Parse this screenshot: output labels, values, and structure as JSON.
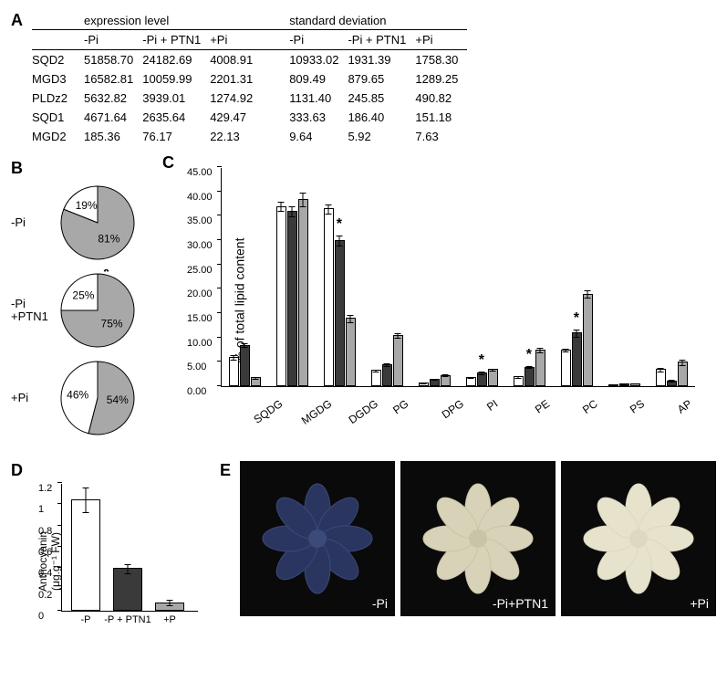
{
  "panelA": {
    "group_headers": [
      "expression level",
      "standard deviation"
    ],
    "col_headers": [
      "-Pi",
      "-Pi + PTN1",
      "+Pi"
    ],
    "rows": [
      {
        "label": "SQD2",
        "expr": [
          "51858.70",
          "24182.69",
          "4008.91"
        ],
        "sd": [
          "10933.02",
          "1931.39",
          "1758.30"
        ]
      },
      {
        "label": "MGD3",
        "expr": [
          "16582.81",
          "10059.99",
          "2201.31"
        ],
        "sd": [
          "809.49",
          "879.65",
          "1289.25"
        ]
      },
      {
        "label": "PLDz2",
        "expr": [
          "5632.82",
          "3939.01",
          "1274.92"
        ],
        "sd": [
          "1131.40",
          "245.85",
          "490.82"
        ]
      },
      {
        "label": "SQD1",
        "expr": [
          "4671.64",
          "2635.64",
          "429.47"
        ],
        "sd": [
          "333.63",
          "186.40",
          "151.18"
        ]
      },
      {
        "label": "MGD2",
        "expr": [
          "185.36",
          "76.17",
          "22.13"
        ],
        "sd": [
          "9.64",
          "5.92",
          "7.63"
        ]
      }
    ]
  },
  "panelB": {
    "pies": [
      {
        "condition": "-Pi",
        "white_pct": 19,
        "gray_pct": 81,
        "white_label": "19%",
        "gray_label": "81%",
        "star": false
      },
      {
        "condition": "-Pi\n+PTN1",
        "white_pct": 25,
        "gray_pct": 75,
        "white_label": "25%",
        "gray_label": "75%",
        "star": true
      },
      {
        "condition": "+Pi",
        "white_pct": 46,
        "gray_pct": 54,
        "white_label": "46%",
        "gray_label": "54%",
        "star": false
      }
    ],
    "colors": {
      "white": "#ffffff",
      "gray": "#a8a8a8",
      "stroke": "#000000"
    }
  },
  "panelC": {
    "type": "bar",
    "ylabel": "% of total lipid content",
    "ylim": [
      0,
      45
    ],
    "ytick_step": 5,
    "yticks": [
      "0.00",
      "5.00",
      "10.00",
      "15.00",
      "20.00",
      "25.00",
      "30.00",
      "35.00",
      "40.00",
      "45.00"
    ],
    "categories": [
      "SQDG",
      "MGDG",
      "DGDG",
      "PG",
      "DPG",
      "PI",
      "PE",
      "PC",
      "PS",
      "AP"
    ],
    "series": [
      {
        "name": "-Pi",
        "color": "#ffffff",
        "values": [
          6.0,
          37.0,
          36.5,
          3.3,
          0.8,
          1.8,
          2.0,
          7.5,
          0.3,
          3.5
        ],
        "err": [
          0.5,
          1.0,
          1.0,
          0.3,
          0.2,
          0.2,
          0.3,
          0.4,
          0.1,
          0.5
        ]
      },
      {
        "name": "-Pi+PTN1",
        "color": "#3a3a3a",
        "values": [
          8.5,
          36.0,
          30.0,
          4.5,
          1.5,
          2.8,
          4.0,
          11.0,
          0.5,
          1.2
        ],
        "err": [
          0.5,
          1.2,
          1.2,
          0.3,
          0.2,
          0.3,
          0.3,
          0.8,
          0.1,
          0.3
        ]
      },
      {
        "name": "+Pi",
        "color": "#a8a8a8",
        "values": [
          1.8,
          38.5,
          14.0,
          10.5,
          2.3,
          3.5,
          7.5,
          19.0,
          0.6,
          5.0
        ],
        "err": [
          0.3,
          1.5,
          0.8,
          0.5,
          0.3,
          0.3,
          0.5,
          0.8,
          0.1,
          0.6
        ]
      }
    ],
    "stars": [
      {
        "cat": "DGDG",
        "series": 1
      },
      {
        "cat": "PI",
        "series": 1
      },
      {
        "cat": "PE",
        "series": 1
      },
      {
        "cat": "PC",
        "series": 1
      }
    ]
  },
  "panelD": {
    "type": "bar",
    "ylabel_line1": "Anthocyanin",
    "ylabel_line2": "(μg.g⁻¹ FW)",
    "ylim": [
      0,
      1.2
    ],
    "ytick_step": 0.2,
    "yticks": [
      "0",
      "0.2",
      "0.4",
      "0.6",
      "0.8",
      "1",
      "1.2"
    ],
    "categories": [
      "-P",
      "-P + PTN1",
      "+P"
    ],
    "values": [
      1.05,
      0.4,
      0.08
    ],
    "err": [
      0.12,
      0.05,
      0.03
    ],
    "colors": [
      "#ffffff",
      "#3a3a3a",
      "#a8a8a8"
    ]
  },
  "panelE": {
    "photos": [
      {
        "label": "-Pi",
        "plant_color": "#2a3560",
        "leaf_tint": "#3c4a7a"
      },
      {
        "label": "-Pi+PTN1",
        "plant_color": "#d8d2b8",
        "leaf_tint": "#c9c4a8"
      },
      {
        "label": "+Pi",
        "plant_color": "#e6e2cc",
        "leaf_tint": "#dcd8c2"
      }
    ]
  },
  "labels": {
    "A": "A",
    "B": "B",
    "C": "C",
    "D": "D",
    "E": "E"
  }
}
